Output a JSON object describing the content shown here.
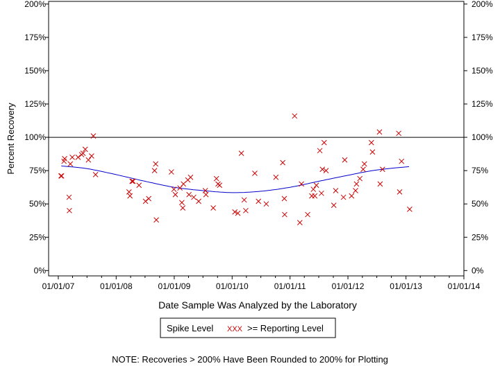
{
  "chart_data": {
    "type": "scatter",
    "xlabel": "Date Sample Was Analyzed by the Laboratory",
    "ylabel": "Percent Recovery",
    "x_tick_labels": [
      "01/01/07",
      "01/01/08",
      "01/01/09",
      "01/01/10",
      "01/01/11",
      "01/01/12",
      "01/01/13",
      "01/01/14"
    ],
    "y_tick_labels": [
      "0%",
      "25%",
      "50%",
      "75%",
      "100%",
      "125%",
      "150%",
      "175%",
      "200%"
    ],
    "y_ticks": [
      0,
      25,
      50,
      75,
      100,
      125,
      150,
      175,
      200
    ],
    "xlim": [
      "2006-11-01",
      "2014-01-01"
    ],
    "ylim": [
      -4,
      202
    ],
    "reference_line": {
      "label": "Spike Level",
      "value": 100,
      "color": "#000000"
    },
    "series": [
      {
        "name": ">= Reporting Level",
        "marker": "x",
        "color": "#cc0000",
        "points": [
          {
            "x": "2007-01-18",
            "y": 71
          },
          {
            "x": "2007-01-22",
            "y": 71
          },
          {
            "x": "2007-02-06",
            "y": 82
          },
          {
            "x": "2007-02-10",
            "y": 84
          },
          {
            "x": "2007-03-10",
            "y": 55
          },
          {
            "x": "2007-03-12",
            "y": 45
          },
          {
            "x": "2007-03-18",
            "y": 80
          },
          {
            "x": "2007-03-30",
            "y": 85
          },
          {
            "x": "2007-05-06",
            "y": 85
          },
          {
            "x": "2007-05-28",
            "y": 87
          },
          {
            "x": "2007-06-06",
            "y": 88
          },
          {
            "x": "2007-06-20",
            "y": 91
          },
          {
            "x": "2007-07-10",
            "y": 83
          },
          {
            "x": "2007-07-30",
            "y": 86
          },
          {
            "x": "2007-08-10",
            "y": 101
          },
          {
            "x": "2007-08-24",
            "y": 72
          },
          {
            "x": "2008-03-22",
            "y": 59
          },
          {
            "x": "2008-03-28",
            "y": 56
          },
          {
            "x": "2008-04-10",
            "y": 67
          },
          {
            "x": "2008-04-16",
            "y": 67
          },
          {
            "x": "2008-05-24",
            "y": 64
          },
          {
            "x": "2008-07-04",
            "y": 52
          },
          {
            "x": "2008-07-24",
            "y": 54
          },
          {
            "x": "2008-08-30",
            "y": 75
          },
          {
            "x": "2008-09-06",
            "y": 80
          },
          {
            "x": "2008-09-10",
            "y": 38
          },
          {
            "x": "2008-12-14",
            "y": 74
          },
          {
            "x": "2008-12-30",
            "y": 61
          },
          {
            "x": "2009-01-08",
            "y": 57
          },
          {
            "x": "2009-02-06",
            "y": 62
          },
          {
            "x": "2009-02-18",
            "y": 51
          },
          {
            "x": "2009-02-24",
            "y": 47
          },
          {
            "x": "2009-02-28",
            "y": 65
          },
          {
            "x": "2009-03-28",
            "y": 68
          },
          {
            "x": "2009-04-04",
            "y": 57
          },
          {
            "x": "2009-04-14",
            "y": 70
          },
          {
            "x": "2009-05-04",
            "y": 55
          },
          {
            "x": "2009-06-04",
            "y": 52
          },
          {
            "x": "2009-07-16",
            "y": 60
          },
          {
            "x": "2009-07-20",
            "y": 57
          },
          {
            "x": "2009-09-04",
            "y": 47
          },
          {
            "x": "2009-09-24",
            "y": 69
          },
          {
            "x": "2009-10-04",
            "y": 65
          },
          {
            "x": "2009-10-14",
            "y": 64
          },
          {
            "x": "2010-01-18",
            "y": 44
          },
          {
            "x": "2010-02-06",
            "y": 43
          },
          {
            "x": "2010-02-28",
            "y": 88
          },
          {
            "x": "2010-03-18",
            "y": 53
          },
          {
            "x": "2010-03-28",
            "y": 45
          },
          {
            "x": "2010-05-24",
            "y": 73
          },
          {
            "x": "2010-06-16",
            "y": 52
          },
          {
            "x": "2010-08-04",
            "y": 50
          },
          {
            "x": "2010-10-04",
            "y": 70
          },
          {
            "x": "2010-11-16",
            "y": 81
          },
          {
            "x": "2010-11-26",
            "y": 54
          },
          {
            "x": "2010-11-28",
            "y": 42
          },
          {
            "x": "2011-01-30",
            "y": 116
          },
          {
            "x": "2011-03-04",
            "y": 36
          },
          {
            "x": "2011-03-14",
            "y": 65
          },
          {
            "x": "2011-04-22",
            "y": 42
          },
          {
            "x": "2011-05-18",
            "y": 56
          },
          {
            "x": "2011-05-28",
            "y": 61
          },
          {
            "x": "2011-06-06",
            "y": 56
          },
          {
            "x": "2011-06-16",
            "y": 64
          },
          {
            "x": "2011-07-08",
            "y": 90
          },
          {
            "x": "2011-07-18",
            "y": 58
          },
          {
            "x": "2011-07-24",
            "y": 76
          },
          {
            "x": "2011-08-04",
            "y": 96
          },
          {
            "x": "2011-08-16",
            "y": 75
          },
          {
            "x": "2011-10-04",
            "y": 49
          },
          {
            "x": "2011-10-16",
            "y": 60
          },
          {
            "x": "2011-12-04",
            "y": 55
          },
          {
            "x": "2011-12-12",
            "y": 83
          },
          {
            "x": "2012-01-24",
            "y": 56
          },
          {
            "x": "2012-02-18",
            "y": 60
          },
          {
            "x": "2012-02-24",
            "y": 65
          },
          {
            "x": "2012-03-16",
            "y": 69
          },
          {
            "x": "2012-04-06",
            "y": 76
          },
          {
            "x": "2012-04-14",
            "y": 80
          },
          {
            "x": "2012-05-28",
            "y": 96
          },
          {
            "x": "2012-06-04",
            "y": 89
          },
          {
            "x": "2012-07-18",
            "y": 104
          },
          {
            "x": "2012-07-22",
            "y": 65
          },
          {
            "x": "2012-08-06",
            "y": 76
          },
          {
            "x": "2012-11-16",
            "y": 103
          },
          {
            "x": "2012-11-22",
            "y": 59
          },
          {
            "x": "2012-12-04",
            "y": 82
          },
          {
            "x": "2013-01-24",
            "y": 46
          }
        ]
      }
    ],
    "trend_line": {
      "color": "#0000cc",
      "points": [
        {
          "x": "2007-01-20",
          "y": 78.5
        },
        {
          "x": "2007-07-01",
          "y": 76.5
        },
        {
          "x": "2008-01-01",
          "y": 72
        },
        {
          "x": "2008-07-01",
          "y": 67
        },
        {
          "x": "2009-01-01",
          "y": 62.5
        },
        {
          "x": "2009-07-01",
          "y": 60
        },
        {
          "x": "2010-01-01",
          "y": 58.5
        },
        {
          "x": "2010-07-01",
          "y": 59.5
        },
        {
          "x": "2011-01-01",
          "y": 62.5
        },
        {
          "x": "2011-07-01",
          "y": 67
        },
        {
          "x": "2012-01-01",
          "y": 71.5
        },
        {
          "x": "2012-07-01",
          "y": 75.5
        },
        {
          "x": "2013-01-20",
          "y": 78
        }
      ]
    },
    "legend": {
      "position": "bottom",
      "spike_label": "Spike Level",
      "marker_glyph": "XXX",
      "reporting_label": ">= Reporting Level"
    },
    "note": "NOTE: Recoveries > 200% Have Been Rounded to 200% for Plotting"
  }
}
